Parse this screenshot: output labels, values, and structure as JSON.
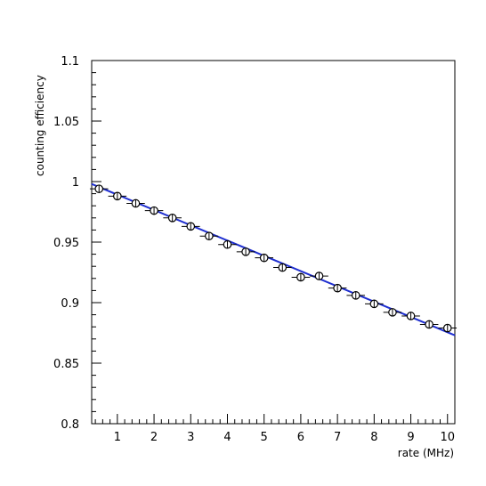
{
  "chart_data": {
    "type": "scatter",
    "xlabel": "rate (MHz)",
    "ylabel": "counting efficiency",
    "xlim": [
      0.3,
      10.2
    ],
    "ylim": [
      0.8,
      1.1
    ],
    "x_ticks": [
      1,
      2,
      3,
      4,
      5,
      6,
      7,
      8,
      9,
      10
    ],
    "y_ticks": [
      0.8,
      0.85,
      0.9,
      0.95,
      1.0,
      1.05,
      1.1
    ],
    "x_tick_labels": [
      "1",
      "2",
      "3",
      "4",
      "5",
      "6",
      "7",
      "8",
      "9",
      "10"
    ],
    "y_tick_labels": [
      "0.8",
      "0.85",
      "0.9",
      "0.95",
      "1",
      "1.05",
      "1.1"
    ],
    "grid": false,
    "series": [
      {
        "kind": "points",
        "x": [
          0.5,
          1.0,
          1.5,
          2.0,
          2.5,
          3.0,
          3.5,
          4.0,
          4.5,
          5.0,
          5.5,
          6.0,
          6.5,
          7.0,
          7.5,
          8.0,
          8.5,
          9.0,
          9.5,
          10.0
        ],
        "y": [
          0.994,
          0.988,
          0.982,
          0.976,
          0.97,
          0.963,
          0.955,
          0.948,
          0.942,
          0.937,
          0.929,
          0.921,
          0.922,
          0.912,
          0.906,
          0.899,
          0.892,
          0.889,
          0.882,
          0.879
        ],
        "xerr": 0.25,
        "yerr": 0.002,
        "color": "#000000"
      },
      {
        "kind": "fit",
        "x": [
          0.3,
          10.2
        ],
        "y": [
          0.998,
          0.873
        ],
        "color": "#1f2fd0"
      }
    ]
  }
}
